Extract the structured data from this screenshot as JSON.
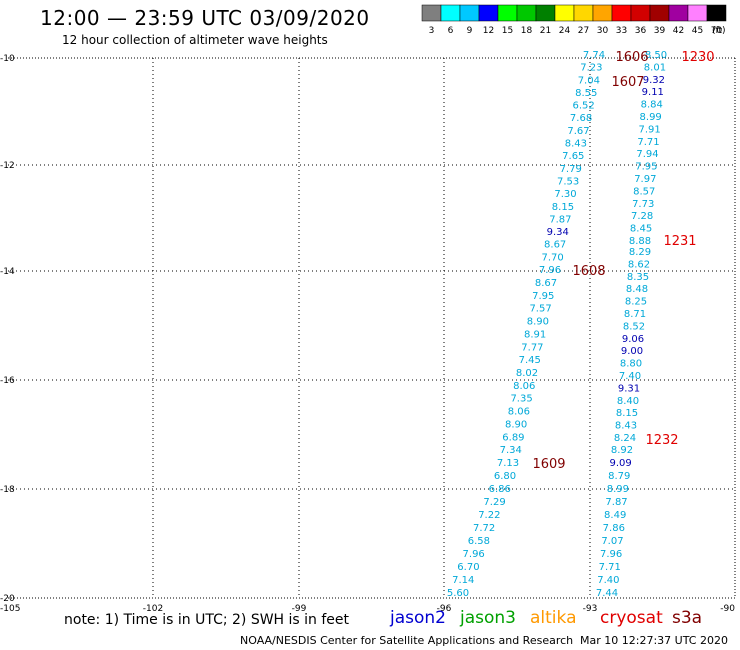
{
  "header": {
    "title": "12:00 — 23:59 UTC 03/09/2020",
    "subtitle": "12 hour collection of altimeter wave heights"
  },
  "legend": {
    "unit": "(ft)",
    "bins": [
      {
        "label": "3",
        "color": "#7f7f7f"
      },
      {
        "label": "6",
        "color": "#00ffff"
      },
      {
        "label": "9",
        "color": "#00c8ff"
      },
      {
        "label": "12",
        "color": "#0000ff"
      },
      {
        "label": "15",
        "color": "#00ff00"
      },
      {
        "label": "18",
        "color": "#00c800"
      },
      {
        "label": "21",
        "color": "#008000"
      },
      {
        "label": "24",
        "color": "#ffff00"
      },
      {
        "label": "27",
        "color": "#ffd700"
      },
      {
        "label": "30",
        "color": "#ffa500"
      },
      {
        "label": "33",
        "color": "#ff0000"
      },
      {
        "label": "36",
        "color": "#d20000"
      },
      {
        "label": "39",
        "color": "#a00000"
      },
      {
        "label": "42",
        "color": "#a000a0"
      },
      {
        "label": "45",
        "color": "#ff80ff"
      },
      {
        "label": "70",
        "color": "#000000"
      }
    ]
  },
  "axes": {
    "lon_ticks": [
      "-105",
      "-102",
      "-99",
      "-96",
      "-93",
      "-90"
    ],
    "lat_ticks": [
      "-10",
      "-12",
      "-14",
      "-16",
      "-18",
      "-20"
    ]
  },
  "colors": {
    "low": "#00a8d8",
    "mid": "#0000b0",
    "pass_time": "#800000",
    "cryosat_time": "#e00000"
  },
  "tracks": [
    {
      "satellite": "jason2-track-west",
      "pass_time": "1606",
      "values": [
        "7.74",
        "7.23",
        "7.04",
        "8.55",
        "6.52",
        "7.68",
        "7.67",
        "8.43",
        "7.65",
        "7.79",
        "7.53",
        "7.30",
        "8.15",
        "7.87",
        "9.34",
        "8.67",
        "7.70",
        "7.96"
      ]
    },
    {
      "satellite": "jason2-track-west-2",
      "pass_time": "1607",
      "values": []
    },
    {
      "satellite": "jason2-track-west-3",
      "pass_time": "1608",
      "values": [
        "8.67",
        "7.95",
        "7.57",
        "8.90",
        "8.91",
        "7.77",
        "7.45",
        "8.02",
        "8.06",
        "7.35",
        "8.06",
        "8.90",
        "6.89",
        "7.34",
        "7.13"
      ]
    },
    {
      "satellite": "jason2-track-west-4",
      "pass_time": "1609",
      "values": [
        "6.80",
        "6.86",
        "7.29",
        "7.22",
        "7.72",
        "6.58",
        "7.96",
        "6.70",
        "7.14",
        "5.60"
      ]
    },
    {
      "satellite": "cryosat-track-east",
      "pass_time": "1230",
      "values": [
        "8.50",
        "8.01",
        "9.32",
        "9.11",
        "8.84",
        "8.99",
        "7.91",
        "7.71",
        "7.94",
        "7.95",
        "7.97",
        "8.57",
        "7.73",
        "7.28",
        "8.45",
        "8.88"
      ]
    },
    {
      "satellite": "cryosat-track-east-2",
      "pass_time": "1231",
      "values": [
        "8.29",
        "8.62",
        "8.35",
        "8.48",
        "8.25",
        "8.71",
        "8.52",
        "9.06",
        "9.00",
        "8.80",
        "7.40",
        "9.31",
        "8.40",
        "8.15",
        "8.43",
        "8.24"
      ]
    },
    {
      "satellite": "cryosat-track-east-3",
      "pass_time": "1232",
      "values": [
        "8.92",
        "9.09",
        "8.79",
        "8.99",
        "7.87",
        "8.49",
        "7.86",
        "7.07",
        "7.96",
        "7.71",
        "7.40",
        "7.44"
      ]
    }
  ],
  "footer": {
    "note": "note: 1) Time is in UTC; 2) SWH is in feet",
    "satellites": [
      {
        "name": "jason2",
        "color": "#0000d0"
      },
      {
        "name": "jason3",
        "color": "#00a000"
      },
      {
        "name": "altika",
        "color": "#ff9900"
      },
      {
        "name": "cryosat",
        "color": "#e00000"
      },
      {
        "name": "s3a",
        "color": "#800000"
      }
    ],
    "credit": "NOAA/NESDIS Center for Satellite Applications and Research",
    "timestamp": "Mar 10 12:27:37 UTC 2020"
  }
}
